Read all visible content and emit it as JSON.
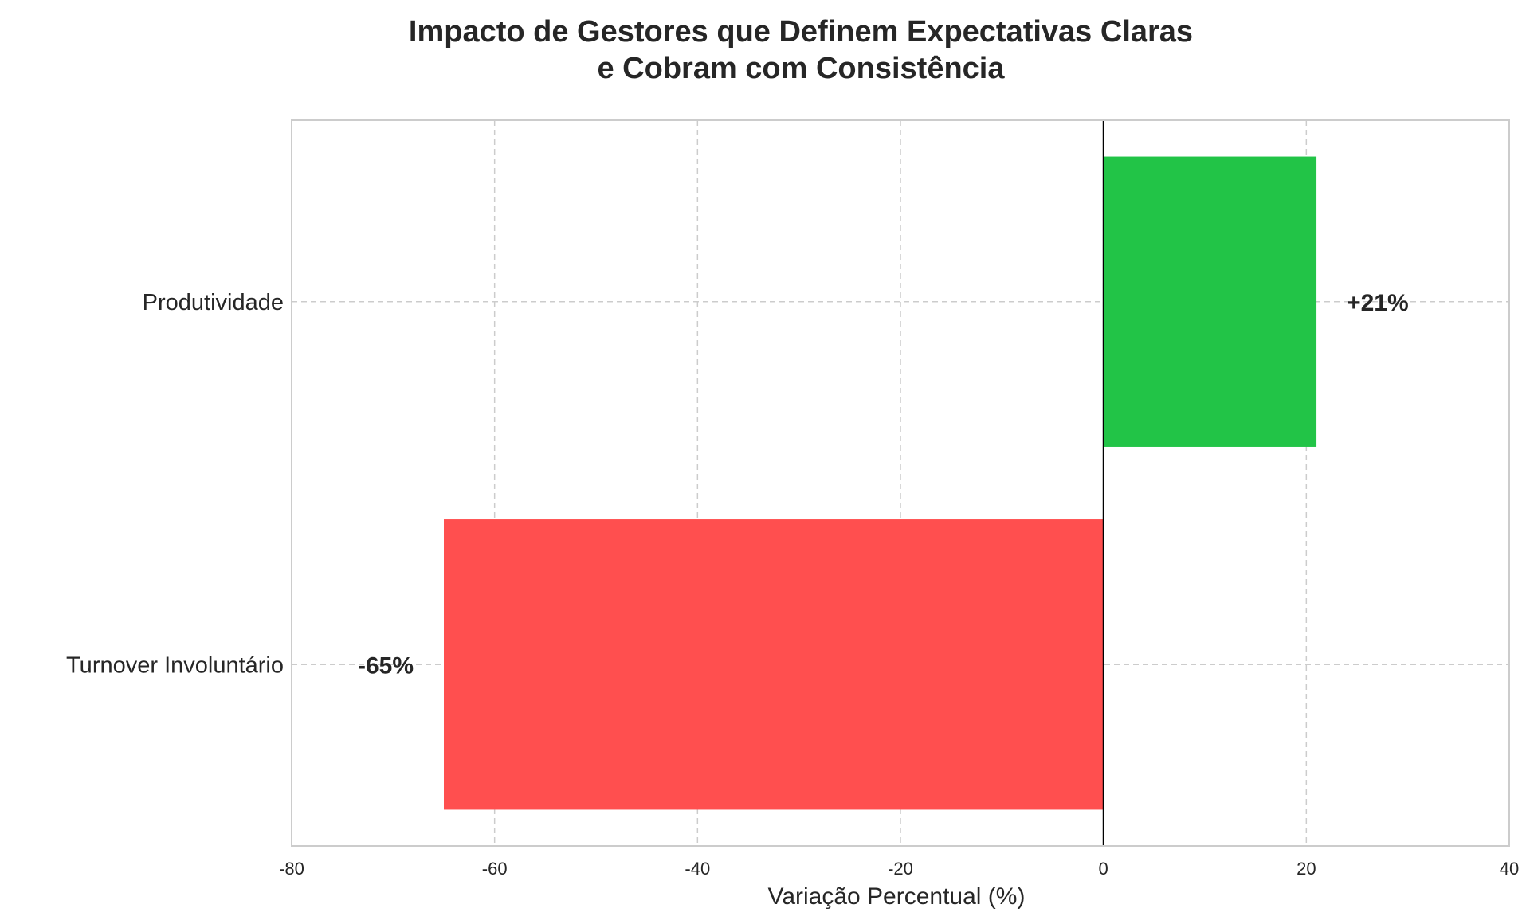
{
  "chart_data": {
    "type": "bar",
    "orientation": "horizontal",
    "title_lines": [
      "Impacto de Gestores que Definem Expectativas Claras",
      "e Cobram com Consistência"
    ],
    "xlabel": "Variação Percentual (%)",
    "ylabel": "",
    "xlim": [
      -80,
      40
    ],
    "xticks": [
      -80,
      -60,
      -40,
      -20,
      0,
      20,
      40
    ],
    "xtick_labels": [
      "-80",
      "-60",
      "-40",
      "-20",
      "0",
      "20",
      "40"
    ],
    "grid": true,
    "categories": [
      "Produtividade",
      "Turnover Involuntário"
    ],
    "values": [
      21,
      -65
    ],
    "data_labels": [
      "+21%",
      "-65%"
    ],
    "colors": [
      "#22c447",
      "#ff4f4f"
    ],
    "zero_line_color": "#000000"
  }
}
